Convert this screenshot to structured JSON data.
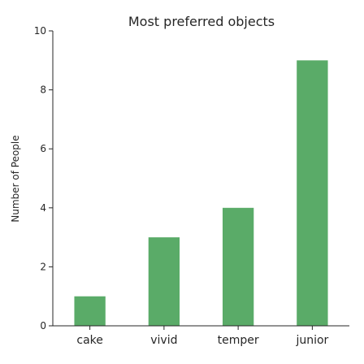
{
  "chart_data": {
    "type": "bar",
    "title": "Most preferred objects",
    "xlabel": "",
    "ylabel": "Number of People",
    "categories": [
      "cake",
      "vivid",
      "temper",
      "junior"
    ],
    "values": [
      1,
      3,
      4,
      9
    ],
    "ylim": [
      0,
      10
    ],
    "yticks": [
      0,
      2,
      4,
      6,
      8,
      10
    ],
    "grid": false,
    "legend": "none",
    "bar_color": "#5aab68"
  }
}
